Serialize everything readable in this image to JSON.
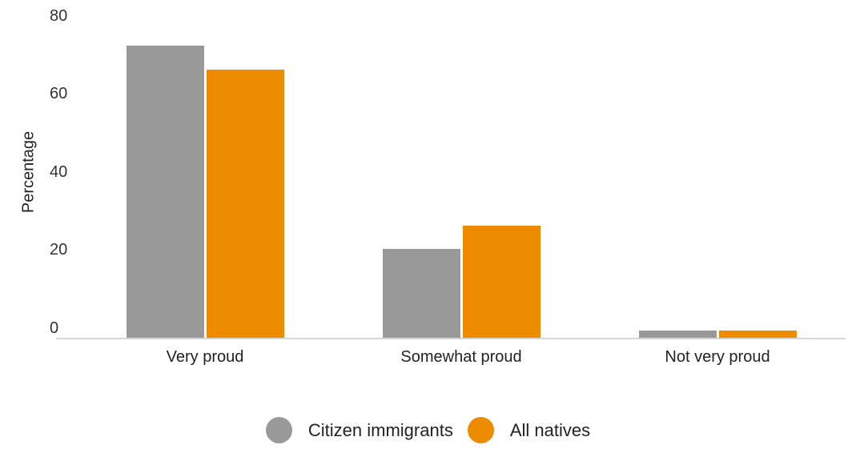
{
  "chart_data": {
    "type": "bar",
    "title": "",
    "xlabel": "",
    "ylabel": "Percentage",
    "ylim": [
      0,
      80
    ],
    "yticks": [
      0,
      20,
      40,
      60,
      80
    ],
    "categories": [
      "Very proud",
      "Somewhat proud",
      "Not very proud"
    ],
    "series": [
      {
        "name": "Citizen immigrants",
        "color": "#999999",
        "values": [
          75,
          23,
          2
        ]
      },
      {
        "name": "All natives",
        "color": "#ec8a00",
        "values": [
          69,
          29,
          2
        ]
      }
    ],
    "grid": false,
    "legend_position": "bottom"
  },
  "axis": {
    "ylabel": "Percentage",
    "ticks": [
      "0",
      "20",
      "40",
      "60",
      "80"
    ]
  },
  "categories": [
    "Very proud",
    "Somewhat proud",
    "Not very proud"
  ],
  "legend": [
    {
      "label": "Citizen immigrants",
      "color": "#999999"
    },
    {
      "label": "All natives",
      "color": "#ec8a00"
    }
  ]
}
